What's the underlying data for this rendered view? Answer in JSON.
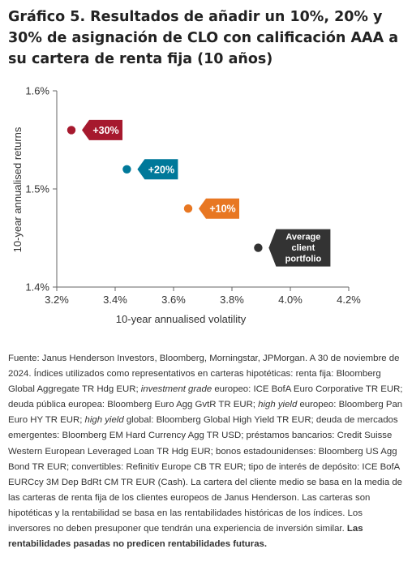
{
  "title": "Gráfico 5. Resultados de añadir un 10%, 20% y 30% de asignación de CLO con calificación AAA a su cartera de renta fija (10 años)",
  "chart_data": {
    "type": "scatter",
    "title": "",
    "xlabel": "10-year annualised volatility",
    "ylabel": "10-year annualised returns",
    "xlim": [
      3.2,
      4.2
    ],
    "ylim": [
      1.4,
      1.6
    ],
    "x_ticks": [
      3.2,
      3.4,
      3.6,
      3.8,
      4.0,
      4.2
    ],
    "x_tick_labels": [
      "3.2%",
      "3.4%",
      "3.6%",
      "3.8%",
      "4.0%",
      "4.2%"
    ],
    "y_ticks": [
      1.4,
      1.5,
      1.6
    ],
    "y_tick_labels": [
      "1.4%",
      "1.5%",
      "1.6%"
    ],
    "grid": false,
    "points": [
      {
        "label": "+30%",
        "x": 3.25,
        "y": 1.56,
        "color": "#a6192e"
      },
      {
        "label": "+20%",
        "x": 3.44,
        "y": 1.52,
        "color": "#00799a"
      },
      {
        "label": "+10%",
        "x": 3.65,
        "y": 1.48,
        "color": "#e87722"
      },
      {
        "label": "Average client portfolio",
        "x": 3.89,
        "y": 1.44,
        "color": "#333333"
      }
    ]
  },
  "source": {
    "p1": "Fuente: Janus Henderson Investors, Bloomberg, Morningstar, JPMorgan. A 30 de noviembre de 2024. Índices utilizados como representativos en carteras hipotéticas: renta fija: Bloomberg Global Aggregate TR Hdg EUR; ",
    "i1": "investment grade",
    "p2": " europeo: ICE BofA Euro Corporative TR EUR; deuda pública europea: Bloomberg Euro Agg GvtR TR EUR; ",
    "i2": "high yield",
    "p3": " europeo: Bloomberg Pan Euro HY TR EUR; ",
    "i3": "high yield",
    "p4": " global: Bloomberg Global High Yield TR EUR; deuda de mercados emergentes: Bloomberg EM Hard Currency Agg TR USD; préstamos bancarios: Credit Suisse Western European Leveraged Loan TR Hdg EUR; bonos estadounidenses: Bloomberg US Agg Bond TR EUR; convertibles: Refinitiv Europe CB TR EUR; tipo de interés de depósito: ICE BofA EURCcy 3M Dep BdRt CM TR EUR (Cash). La cartera del cliente medio se basa en la media de las carteras de renta fija de los clientes europeos de Janus Henderson. Las carteras son hipotéticas y la rentabilidad se basa en las rentabilidades históricas de los índices. Los inversores no deben presuponer que tendrán una experiencia de inversión similar. ",
    "bold": "Las rentabilidades pasadas no predicen rentabilidades futuras."
  }
}
